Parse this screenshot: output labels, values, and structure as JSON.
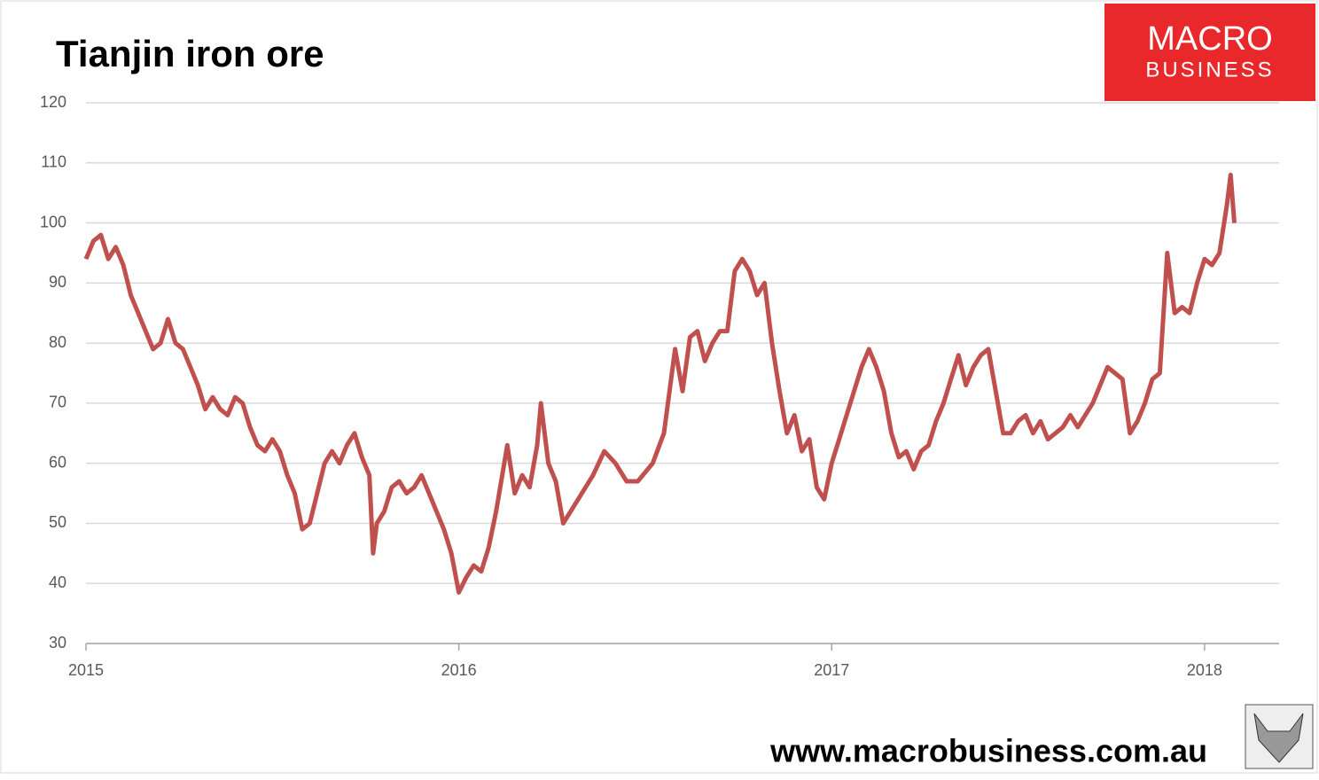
{
  "chart_data": {
    "type": "line",
    "title": "Tianjin iron ore",
    "logo": [
      "MACRO",
      "BUSINESS"
    ],
    "url": "www.macrobusiness.com.au",
    "xlim": [
      2015,
      2018.2
    ],
    "xticks": [
      2015,
      2016,
      2017,
      2018
    ],
    "ylim": [
      30,
      120
    ],
    "yticks": [
      30,
      40,
      50,
      60,
      70,
      80,
      90,
      100,
      110,
      120
    ],
    "grid": true,
    "series": [
      {
        "color": "#c0504d",
        "x": [
          2015.0,
          2015.02,
          2015.04,
          2015.06,
          2015.08,
          2015.1,
          2015.12,
          2015.14,
          2015.16,
          2015.18,
          2015.2,
          2015.22,
          2015.24,
          2015.26,
          2015.28,
          2015.3,
          2015.32,
          2015.34,
          2015.36,
          2015.38,
          2015.4,
          2015.42,
          2015.44,
          2015.46,
          2015.48,
          2015.5,
          2015.52,
          2015.54,
          2015.56,
          2015.58,
          2015.6,
          2015.62,
          2015.64,
          2015.66,
          2015.68,
          2015.7,
          2015.72,
          2015.74,
          2015.76,
          2015.77,
          2015.78,
          2015.8,
          2015.82,
          2015.84,
          2015.86,
          2015.88,
          2015.9,
          2015.92,
          2015.94,
          2015.96,
          2015.98,
          2016.0,
          2016.02,
          2016.04,
          2016.06,
          2016.08,
          2016.1,
          2016.13,
          2016.15,
          2016.17,
          2016.19,
          2016.21,
          2016.22,
          2016.24,
          2016.26,
          2016.28,
          2016.3,
          2016.33,
          2016.36,
          2016.39,
          2016.42,
          2016.45,
          2016.48,
          2016.52,
          2016.55,
          2016.58,
          2016.6,
          2016.62,
          2016.64,
          2016.66,
          2016.68,
          2016.7,
          2016.72,
          2016.74,
          2016.76,
          2016.78,
          2016.8,
          2016.82,
          2016.84,
          2016.86,
          2016.88,
          2016.9,
          2016.92,
          2016.94,
          2016.96,
          2016.98,
          2017.0,
          2017.02,
          2017.04,
          2017.06,
          2017.08,
          2017.1,
          2017.12,
          2017.14,
          2017.16,
          2017.18,
          2017.2,
          2017.22,
          2017.24,
          2017.26,
          2017.28,
          2017.3,
          2017.32,
          2017.34,
          2017.36,
          2017.38,
          2017.4,
          2017.42,
          2017.44,
          2017.46,
          2017.48,
          2017.5,
          2017.52,
          2017.54,
          2017.56,
          2017.58,
          2017.6,
          2017.62,
          2017.64,
          2017.66,
          2017.68,
          2017.7,
          2017.72,
          2017.74,
          2017.76,
          2017.78,
          2017.8,
          2017.82,
          2017.84,
          2017.86,
          2017.88,
          2017.9,
          2017.92,
          2017.94,
          2017.96,
          2017.98,
          2018.0,
          2018.02,
          2018.04,
          2018.06,
          2018.07,
          2018.08
        ],
        "values": [
          94,
          97,
          98,
          94,
          96,
          93,
          88,
          85,
          82,
          79,
          80,
          84,
          80,
          79,
          76,
          73,
          69,
          71,
          69,
          68,
          71,
          70,
          66,
          63,
          62,
          64,
          62,
          58,
          55,
          49,
          50,
          55,
          60,
          62,
          60,
          63,
          65,
          61,
          58,
          45,
          50,
          52,
          56,
          57,
          55,
          56,
          58,
          55,
          52,
          49,
          45,
          38.5,
          41,
          43,
          42,
          46,
          52,
          63,
          55,
          58,
          56,
          63,
          70,
          60,
          57,
          50,
          52,
          55,
          58,
          62,
          60,
          57,
          57,
          60,
          65,
          79,
          72,
          81,
          82,
          77,
          80,
          82,
          82,
          92,
          94,
          92,
          88,
          90,
          80,
          72,
          65,
          68,
          62,
          64,
          56,
          54,
          60,
          64,
          68,
          72,
          76,
          79,
          76,
          72,
          65,
          61,
          62,
          59,
          62,
          63,
          67,
          70,
          74,
          78,
          73,
          76,
          78,
          79,
          72,
          65,
          65,
          67,
          68,
          65,
          67,
          64,
          65,
          66,
          68,
          66,
          68,
          70,
          73,
          76,
          75,
          74,
          65,
          67,
          70,
          74,
          75,
          95,
          85,
          86,
          85,
          90,
          94,
          93,
          95,
          103,
          108,
          100
        ]
      }
    ]
  }
}
